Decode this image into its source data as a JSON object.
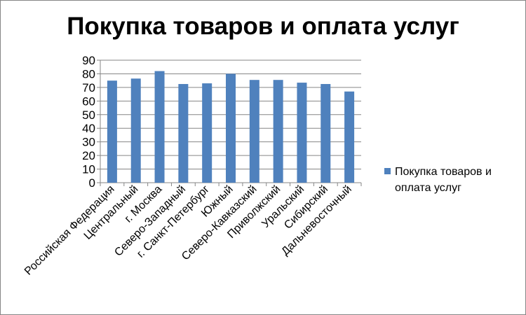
{
  "chart_data": {
    "type": "bar",
    "title": "Покупка товаров и оплата услуг",
    "xlabel": "",
    "ylabel": "",
    "ylim": [
      0,
      90
    ],
    "yticks": [
      "0",
      "10",
      "20",
      "30",
      "40",
      "50",
      "60",
      "70",
      "80",
      "90"
    ],
    "grid": true,
    "legend_position": "right",
    "categories": [
      "Российская Федерация",
      "Центральный",
      "г. Москва",
      "Северо-Западный",
      "г. Санкт-Петербург",
      "Южный",
      "Северо-Кавказский",
      "Приволжский",
      "Уральский",
      "Сибирский",
      "Дальневосточный"
    ],
    "series": [
      {
        "name": "Покупка товаров и оплата услуг",
        "color": "#4f81bd",
        "values": [
          75,
          76.5,
          82,
          72.5,
          73,
          80,
          75.5,
          75.5,
          73.5,
          72.5,
          67
        ]
      }
    ]
  }
}
